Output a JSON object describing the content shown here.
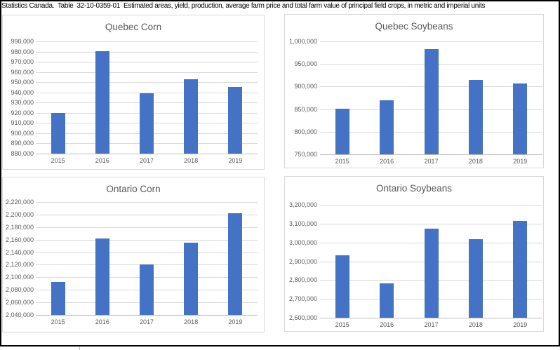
{
  "header": {
    "title": "Statistics Canada.  Table  32-10-0359-01  Estimated areas, yield, production, average farm price and total farm value of principal field crops, in metric and imperial units"
  },
  "colors": {
    "bar": "#4472C4",
    "gridline": "#D9D9D9",
    "axis_line": "#BFBFBF",
    "label_text": "#595959",
    "frame": "#000000"
  },
  "chart_data": [
    {
      "type": "bar",
      "title": "Quebec Corn",
      "categories": [
        "2015",
        "2016",
        "2017",
        "2018",
        "2019"
      ],
      "values": [
        920000,
        980500,
        939000,
        953000,
        945000
      ],
      "xlabel": "",
      "ylabel": "",
      "ylim": [
        880000,
        990000
      ],
      "ystep": 10000,
      "grid": true,
      "legend": "none"
    },
    {
      "type": "bar",
      "title": "Quebec Soybeans",
      "categories": [
        "2015",
        "2016",
        "2017",
        "2018",
        "2019"
      ],
      "values": [
        851000,
        869000,
        983000,
        915000,
        907000
      ],
      "xlabel": "",
      "ylabel": "",
      "ylim": [
        750000,
        1000000
      ],
      "ystep": 50000,
      "grid": true,
      "legend": "none"
    },
    {
      "type": "bar",
      "title": "Ontario Corn",
      "categories": [
        "2015",
        "2016",
        "2017",
        "2018",
        "2019"
      ],
      "values": [
        2093000,
        2162000,
        2120000,
        2155000,
        2202000
      ],
      "xlabel": "",
      "ylabel": "",
      "ylim": [
        2040000,
        2220000
      ],
      "ystep": 20000,
      "grid": true,
      "legend": "none"
    },
    {
      "type": "bar",
      "title": "Ontario Soybeans",
      "categories": [
        "2015",
        "2016",
        "2017",
        "2018",
        "2019"
      ],
      "values": [
        2930000,
        2781000,
        3073000,
        3019000,
        3115000
      ],
      "xlabel": "",
      "ylabel": "",
      "ylim": [
        2600000,
        3200000
      ],
      "ystep": 100000,
      "grid": true,
      "legend": "none"
    }
  ]
}
